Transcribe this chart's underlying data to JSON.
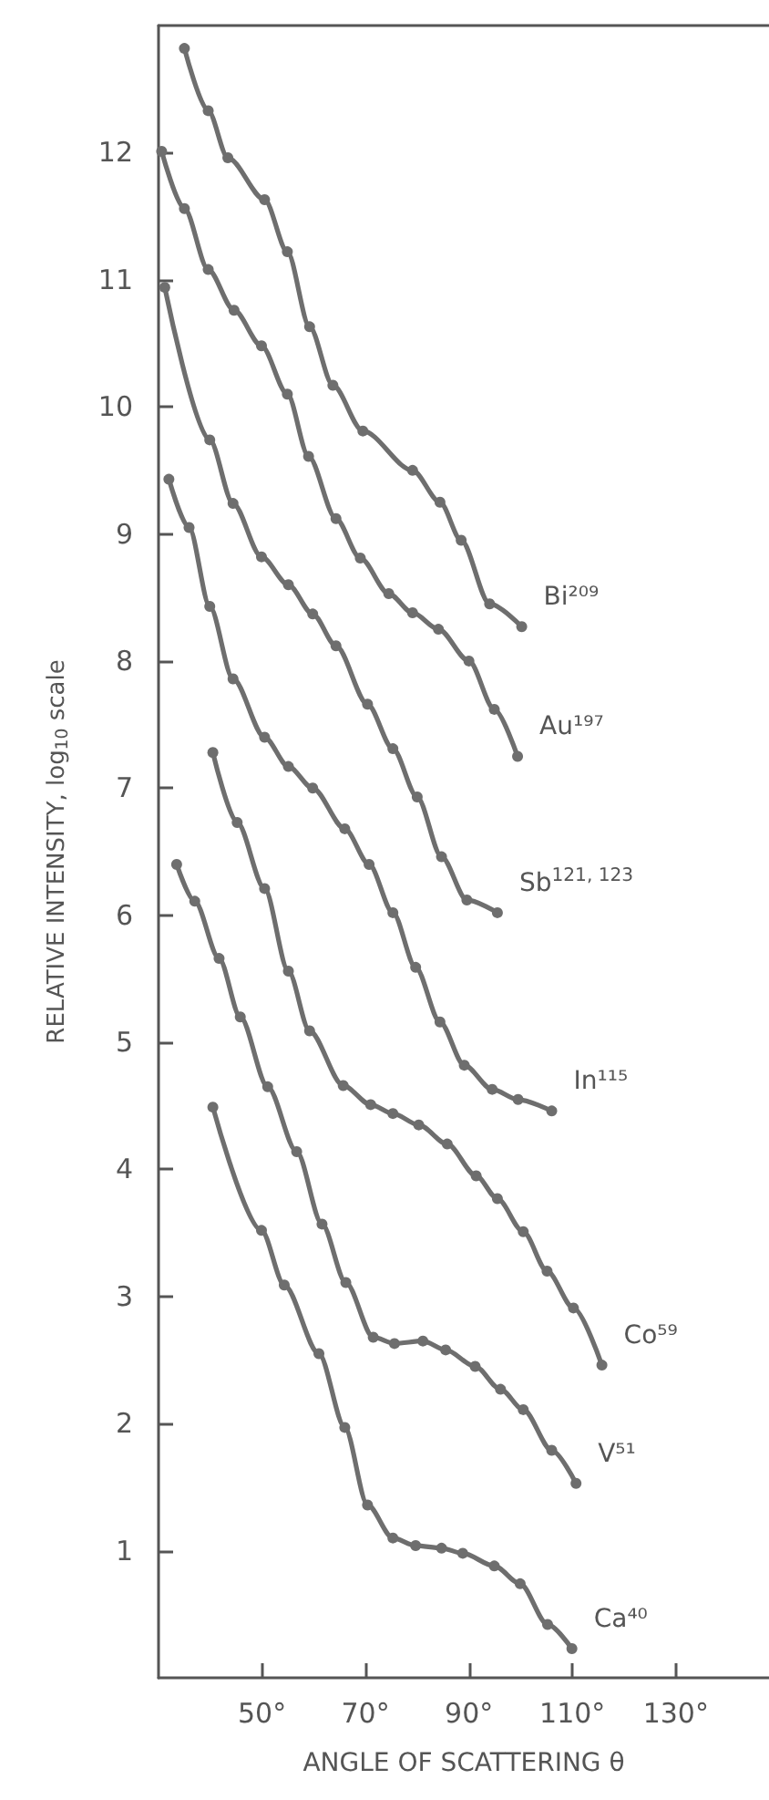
{
  "chart_data": {
    "type": "line",
    "xlabel": "ANGLE OF SCATTERING θ",
    "ylabel": "RELATIVE INTENSITY, log$_{10}$ scale",
    "xlim": [
      30,
      148
    ],
    "ylim": [
      0,
      13
    ],
    "xticks": [
      {
        "value": 50,
        "label": "50°"
      },
      {
        "value": 70,
        "label": "70°"
      },
      {
        "value": 90,
        "label": "90°"
      },
      {
        "value": 110,
        "label": "110°"
      },
      {
        "value": 130,
        "label": "130°"
      }
    ],
    "yticks": [
      1,
      2,
      3,
      4,
      5,
      6,
      7,
      8,
      9,
      10,
      11,
      12
    ],
    "grid": false,
    "legend": false,
    "marker": "circle",
    "line_style": "solid",
    "series": [
      {
        "name": "Bi²⁰⁹",
        "color": "#6e6e6e",
        "x": [
          35.0,
          39.6,
          43.4,
          50.5,
          54.9,
          59.2,
          63.7,
          69.5,
          79.1,
          84.4,
          88.5,
          94.0,
          100.2
        ],
        "values": [
          12.82,
          12.33,
          11.96,
          11.63,
          11.22,
          10.63,
          10.17,
          9.81,
          9.5,
          9.25,
          8.95,
          8.45,
          8.27
        ]
      },
      {
        "name": "Au¹⁹⁷",
        "color": "#6e6e6e",
        "x": [
          30.6,
          35.0,
          39.6,
          44.6,
          49.9,
          54.9,
          59.0,
          64.3,
          69.0,
          74.5,
          79.1,
          84.1,
          90.0,
          94.9,
          99.4
        ],
        "values": [
          12.01,
          11.56,
          11.08,
          10.76,
          10.48,
          10.1,
          9.61,
          9.12,
          8.81,
          8.53,
          8.38,
          8.25,
          8.0,
          7.62,
          7.25
        ]
      },
      {
        "name": "Sb$^{121, 123}$",
        "color": "#6e6e6e",
        "x": [
          31.2,
          39.9,
          44.4,
          49.9,
          55.1,
          59.8,
          64.3,
          70.4,
          75.3,
          80.0,
          84.7,
          89.6,
          95.5
        ],
        "values": [
          10.94,
          9.74,
          9.24,
          8.82,
          8.6,
          8.37,
          8.12,
          7.66,
          7.31,
          6.93,
          6.46,
          6.12,
          6.02
        ]
      },
      {
        "name": "In¹¹⁵",
        "color": "#6e6e6e",
        "x": [
          32.0,
          35.9,
          39.9,
          44.4,
          50.5,
          55.1,
          59.8,
          66.0,
          70.7,
          75.3,
          79.7,
          84.4,
          89.1,
          94.5,
          99.5,
          106.0
        ],
        "values": [
          9.43,
          9.05,
          8.43,
          7.86,
          7.4,
          7.17,
          7.0,
          6.68,
          6.4,
          6.02,
          5.59,
          5.16,
          4.82,
          4.63,
          4.55,
          4.46
        ]
      },
      {
        "name": "Co⁵⁹",
        "color": "#6e6e6e",
        "x": [
          40.5,
          45.2,
          50.5,
          55.1,
          59.2,
          65.7,
          71.0,
          75.3,
          80.3,
          85.8,
          91.4,
          95.5,
          100.5,
          105.1,
          110.2,
          115.7
        ],
        "values": [
          7.28,
          6.73,
          6.21,
          5.56,
          5.09,
          4.66,
          4.51,
          4.44,
          4.35,
          4.2,
          3.95,
          3.77,
          3.51,
          3.2,
          2.91,
          2.46
        ]
      },
      {
        "name": "V⁵¹",
        "color": "#6e6e6e",
        "x": [
          33.5,
          37.0,
          41.7,
          45.8,
          51.1,
          56.7,
          61.6,
          66.2,
          71.5,
          75.6,
          81.1,
          85.5,
          91.2,
          96.1,
          100.5,
          106.0,
          110.7
        ],
        "values": [
          6.4,
          6.11,
          5.66,
          5.2,
          4.65,
          4.14,
          3.57,
          3.11,
          2.68,
          2.63,
          2.65,
          2.58,
          2.45,
          2.27,
          2.11,
          1.79,
          1.53
        ]
      },
      {
        "name": "Ca⁴⁰",
        "color": "#6e6e6e",
        "x": [
          40.5,
          49.9,
          54.3,
          61.0,
          66.0,
          70.4,
          75.3,
          79.7,
          84.7,
          88.8,
          94.9,
          99.9,
          105.2,
          109.9
        ],
        "values": [
          4.49,
          3.52,
          3.09,
          2.55,
          1.97,
          1.36,
          1.1,
          1.04,
          1.02,
          0.98,
          0.88,
          0.74,
          0.42,
          0.23
        ]
      }
    ]
  }
}
